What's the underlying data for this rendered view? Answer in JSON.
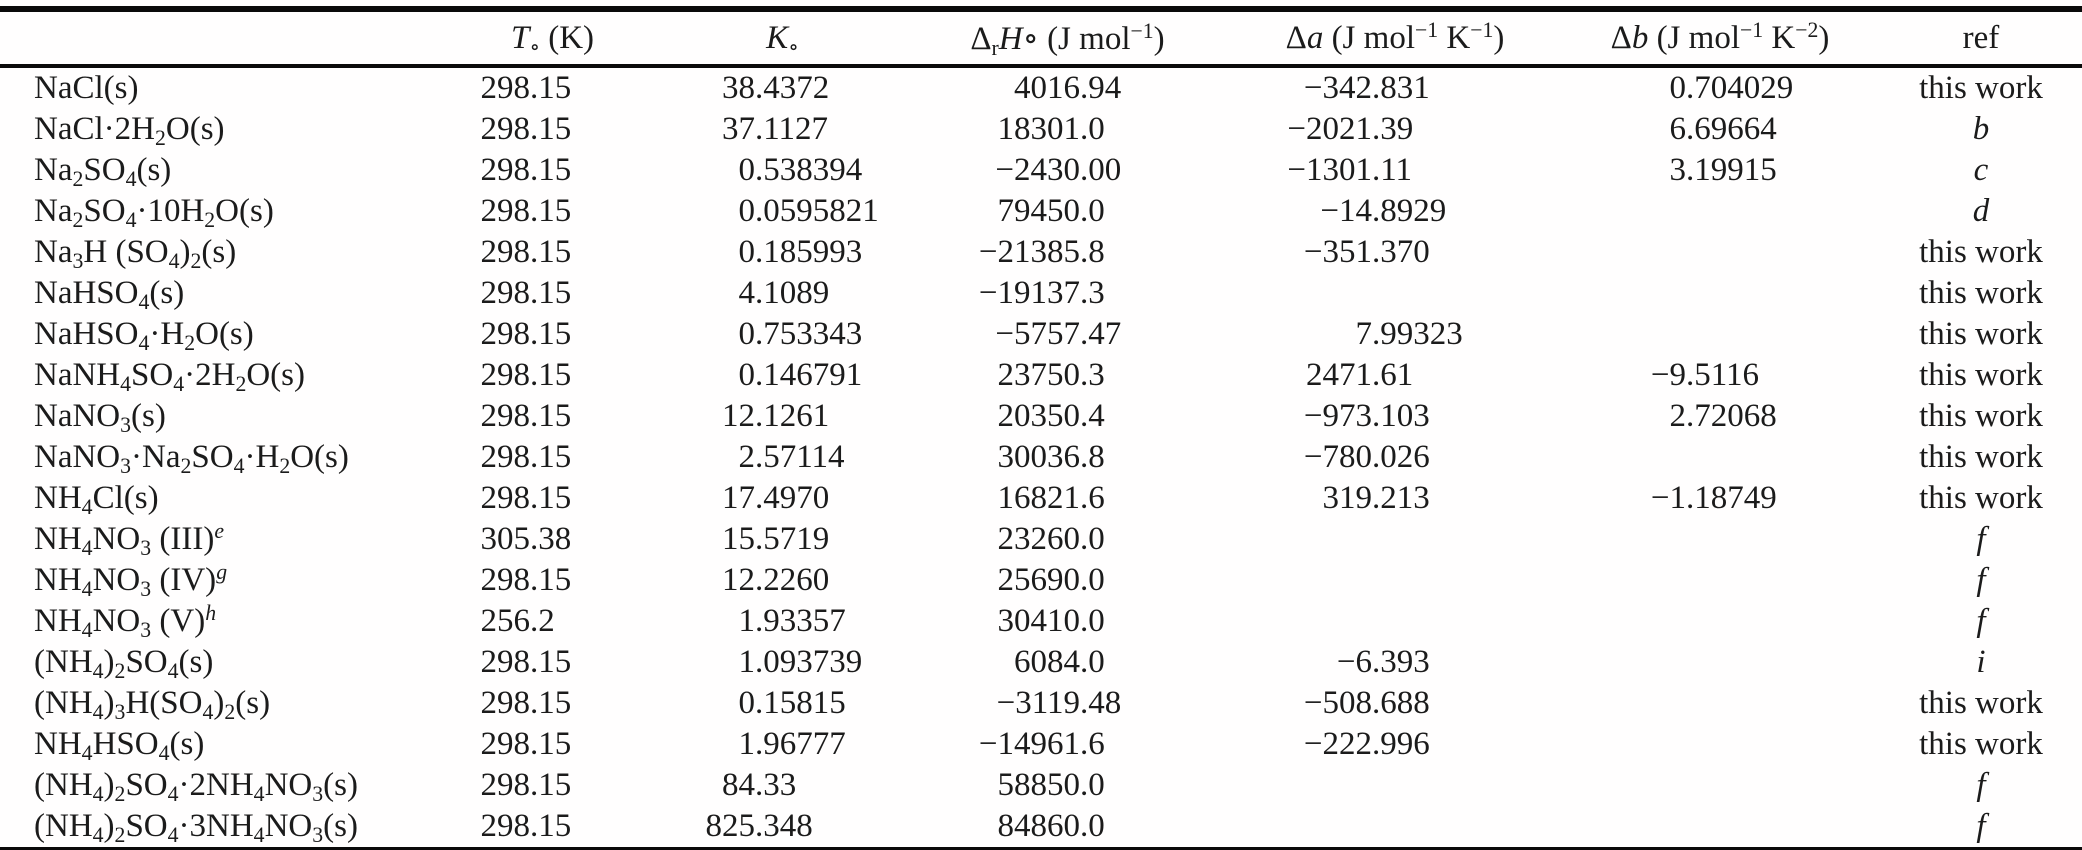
{
  "page": {
    "background": "#fffefe",
    "text_color": "#1b1b1b",
    "rule_color": "#0a0a0a"
  },
  "table": {
    "columns": [
      {
        "key": "compound",
        "label": ""
      },
      {
        "key": "T",
        "label": "<i>T</i><sub>∘</sub> (K)"
      },
      {
        "key": "K",
        "label": "<i>K</i><sub>∘</sub>"
      },
      {
        "key": "H",
        "label": "Δ<sub>r</sub><i>H</i>∘ (J mol<sup>−1</sup>)"
      },
      {
        "key": "a",
        "label": "Δ<i>a</i> (J mol<sup>−1</sup> K<sup>−1</sup>)"
      },
      {
        "key": "b",
        "label": "Δ<i>b</i> (J mol<sup>−1</sup> K<sup>−2</sup>)"
      },
      {
        "key": "ref",
        "label": "ref"
      }
    ],
    "rows": [
      {
        "compound": "NaCl(s)",
        "T": "298.15",
        "K": "38.4372",
        "H": "4016.94",
        "a": "−342.831",
        "b": "0.704029",
        "ref": "this work",
        "ref_style": "roman"
      },
      {
        "compound": "NaCl·2H<sub>2</sub>O(s)",
        "T": "298.15",
        "K": "37.1127",
        "H": "18301.0",
        "a": "−2021.39",
        "b": "6.69664",
        "ref": "b",
        "ref_style": "italic"
      },
      {
        "compound": "Na<sub>2</sub>SO<sub>4</sub>(s)",
        "T": "298.15",
        "K": "0.538394",
        "H": "−2430.00",
        "a": "−1301.11",
        "b": "3.19915",
        "ref": "c",
        "ref_style": "italic"
      },
      {
        "compound": "Na<sub>2</sub>SO<sub>4</sub>·10H<sub>2</sub>O(s)",
        "T": "298.15",
        "K": "0.0595821",
        "H": "79450.0",
        "a": "−14.8929",
        "b": "",
        "ref": "d",
        "ref_style": "italic"
      },
      {
        "compound": "Na<sub>3</sub>H (SO<sub>4</sub>)<sub>2</sub>(s)",
        "T": "298.15",
        "K": "0.185993",
        "H": "−21385.8",
        "a": "−351.370",
        "b": "",
        "ref": "this work",
        "ref_style": "roman"
      },
      {
        "compound": "NaHSO<sub>4</sub>(s)",
        "T": "298.15",
        "K": "4.1089",
        "H": "−19137.3",
        "a": "",
        "b": "",
        "ref": "this work",
        "ref_style": "roman"
      },
      {
        "compound": "NaHSO<sub>4</sub>·H<sub>2</sub>O(s)",
        "T": "298.15",
        "K": "0.753343",
        "H": "−5757.47",
        "a": "7.99323",
        "b": "",
        "ref": "this work",
        "ref_style": "roman"
      },
      {
        "compound": "NaNH<sub>4</sub>SO<sub>4</sub>·2H<sub>2</sub>O(s)",
        "T": "298.15",
        "K": "0.146791",
        "H": "23750.3",
        "a": "2471.61",
        "b": "−9.5116",
        "ref": "this work",
        "ref_style": "roman"
      },
      {
        "compound": "NaNO<sub>3</sub>(s)",
        "T": "298.15",
        "K": "12.1261",
        "H": "20350.4",
        "a": "−973.103",
        "b": "2.72068",
        "ref": "this work",
        "ref_style": "roman"
      },
      {
        "compound": "NaNO<sub>3</sub>·Na<sub>2</sub>SO<sub>4</sub>·H<sub>2</sub>O(s)",
        "T": "298.15",
        "K": "2.57114",
        "H": "30036.8",
        "a": "−780.026",
        "b": "",
        "ref": "this work",
        "ref_style": "roman"
      },
      {
        "compound": "NH<sub>4</sub>Cl(s)",
        "T": "298.15",
        "K": "17.4970",
        "H": "16821.6",
        "a": "319.213",
        "b": "−1.18749",
        "ref": "this work",
        "ref_style": "roman"
      },
      {
        "compound": "NH<sub>4</sub>NO<sub>3</sub> (III)<sup><i>e</i></sup>",
        "T": "305.38",
        "K": "15.5719",
        "H": "23260.0",
        "a": "",
        "b": "",
        "ref": "f",
        "ref_style": "italic"
      },
      {
        "compound": "NH<sub>4</sub>NO<sub>3</sub> (IV)<sup><i>g</i></sup>",
        "T": "298.15",
        "K": "12.2260",
        "H": "25690.0",
        "a": "",
        "b": "",
        "ref": "f",
        "ref_style": "italic"
      },
      {
        "compound": "NH<sub>4</sub>NO<sub>3</sub> (V)<sup><i>h</i></sup>",
        "T": "256.2",
        "K": "1.93357",
        "H": "30410.0",
        "a": "",
        "b": "",
        "ref": "f",
        "ref_style": "italic"
      },
      {
        "compound": "(NH<sub>4</sub>)<sub>2</sub>SO<sub>4</sub>(s)",
        "T": "298.15",
        "K": "1.093739",
        "H": "6084.0",
        "a": "−6.393",
        "b": "",
        "ref": "i",
        "ref_style": "italic"
      },
      {
        "compound": "(NH<sub>4</sub>)<sub>3</sub>H(SO<sub>4</sub>)<sub>2</sub>(s)",
        "T": "298.15",
        "K": "0.15815",
        "H": "−3119.48",
        "a": "−508.688",
        "b": "",
        "ref": "this work",
        "ref_style": "roman"
      },
      {
        "compound": "NH<sub>4</sub>HSO<sub>4</sub>(s)",
        "T": "298.15",
        "K": "1.96777",
        "H": "−14961.6",
        "a": "−222.996",
        "b": "",
        "ref": "this work",
        "ref_style": "roman"
      },
      {
        "compound": "(NH<sub>4</sub>)<sub>2</sub>SO<sub>4</sub>·2NH<sub>4</sub>NO<sub>3</sub>(s)",
        "T": "298.15",
        "K": "84.33",
        "H": "58850.0",
        "a": "",
        "b": "",
        "ref": "f",
        "ref_style": "italic"
      },
      {
        "compound": "(NH<sub>4</sub>)<sub>2</sub>SO<sub>4</sub>·3NH<sub>4</sub>NO<sub>3</sub>(s)",
        "T": "298.15",
        "K": "825.348",
        "H": "84860.0",
        "a": "",
        "b": "",
        "ref": "f",
        "ref_style": "italic"
      }
    ]
  }
}
